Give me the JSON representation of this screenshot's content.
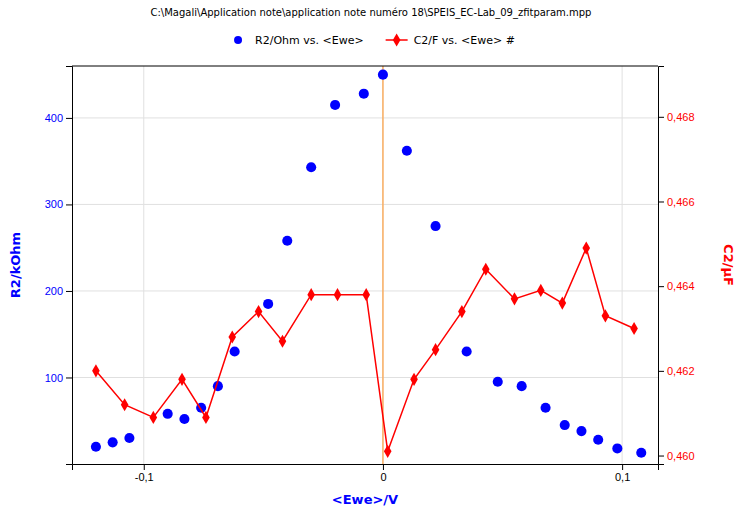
{
  "chart_data": {
    "type": "scatter",
    "title": "C:\\Magali\\Application note\\application note numéro 18\\SPEIS_EC-Lab_09_zfitparam.mpp",
    "x_label": "<Ewe>/V",
    "y_label": "R2/kOhm",
    "y2_label": "C2/μF",
    "series": [
      {
        "name": "R2/Ohm vs. <Ewe>",
        "type": "scatter",
        "marker": "circle",
        "color": "#0000FF",
        "x": [
          -0.12,
          -0.113,
          -0.106,
          -0.09,
          -0.083,
          -0.076,
          -0.069,
          -0.062,
          -0.048,
          -0.04,
          -0.03,
          -0.02,
          -0.008,
          0.0,
          0.01,
          0.022,
          0.035,
          0.048,
          0.058,
          0.068,
          0.076,
          0.083,
          0.09,
          0.098,
          0.108
        ],
        "values": [
          20,
          25,
          30,
          58,
          52,
          65,
          90,
          130,
          185,
          258,
          343,
          415,
          428,
          450,
          362,
          275,
          130,
          95,
          90,
          65,
          45,
          38,
          28,
          18,
          13
        ]
      },
      {
        "name": "C2/F vs. <Ewe> #",
        "type": "line",
        "marker": "diamond",
        "line_style": "solid",
        "color": "#FF0000",
        "axis": "y2",
        "x": [
          -0.12,
          -0.108,
          -0.096,
          -0.084,
          -0.074,
          -0.063,
          -0.052,
          -0.042,
          -0.03,
          -0.019,
          -0.007,
          0.002,
          0.013,
          0.022,
          0.033,
          0.043,
          0.055,
          0.066,
          0.075,
          0.085,
          0.093,
          0.105
        ],
        "values": [
          0.462,
          0.4612,
          0.4609,
          0.4618,
          0.4609,
          0.4628,
          0.4634,
          0.4627,
          0.4638,
          0.4638,
          0.4638,
          0.4601,
          0.4618,
          0.4625,
          0.4634,
          0.4644,
          0.4637,
          0.4639,
          0.4636,
          0.4649,
          0.4633,
          0.463
        ]
      }
    ],
    "reference_lines": [
      {
        "x": 0.0,
        "color": "#FFA040"
      }
    ],
    "xlim": [
      -0.13,
      0.115
    ],
    "ylim": [
      0,
      460
    ],
    "y2lim": [
      0.4598,
      0.4692
    ],
    "xticks": [
      {
        "value": -0.1,
        "label": "-0,1"
      },
      0,
      {
        "value": 0.1,
        "label": "0,1"
      }
    ],
    "yticks": [
      100,
      200,
      300,
      400
    ],
    "y2ticks": [
      {
        "value": 0.46,
        "label": "0,460"
      },
      {
        "value": 0.462,
        "label": "0,462"
      },
      {
        "value": 0.464,
        "label": "0,464"
      },
      {
        "value": 0.466,
        "label": "0,466"
      },
      {
        "value": 0.468,
        "label": "0,468"
      }
    ],
    "grid": true,
    "legend": "top"
  }
}
